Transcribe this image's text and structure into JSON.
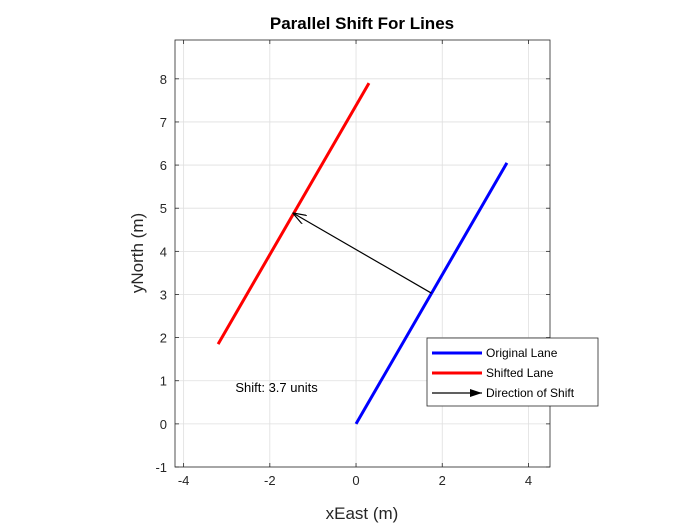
{
  "chart_data": {
    "type": "line",
    "title": "Parallel Shift For Lines",
    "xlabel": "xEast (m)",
    "ylabel": "yNorth (m)",
    "xlim": [
      -4.2,
      4.5
    ],
    "ylim": [
      -1,
      8.9
    ],
    "xticks": [
      -4,
      -2,
      0,
      2,
      4
    ],
    "yticks": [
      -1,
      0,
      1,
      2,
      3,
      4,
      5,
      6,
      7,
      8
    ],
    "grid": true,
    "series": [
      {
        "name": "Original Lane",
        "color": "#0000ff",
        "x": [
          0,
          3.5
        ],
        "y": [
          0,
          6.05
        ]
      },
      {
        "name": "Shifted Lane",
        "color": "#ff0000",
        "x": [
          -3.2,
          0.3
        ],
        "y": [
          1.85,
          7.9
        ]
      }
    ],
    "arrow": {
      "name": "Direction of Shift",
      "color": "#000000",
      "from": [
        1.75,
        3.03
      ],
      "to": [
        -1.45,
        4.88
      ]
    },
    "annotations": [
      {
        "text": "Shift: 3.7 units",
        "x": -2.8,
        "y": 0.85
      }
    ],
    "legend": {
      "location": "southeast",
      "entries": [
        "Original Lane",
        "Shifted Lane",
        "Direction of Shift"
      ]
    }
  }
}
